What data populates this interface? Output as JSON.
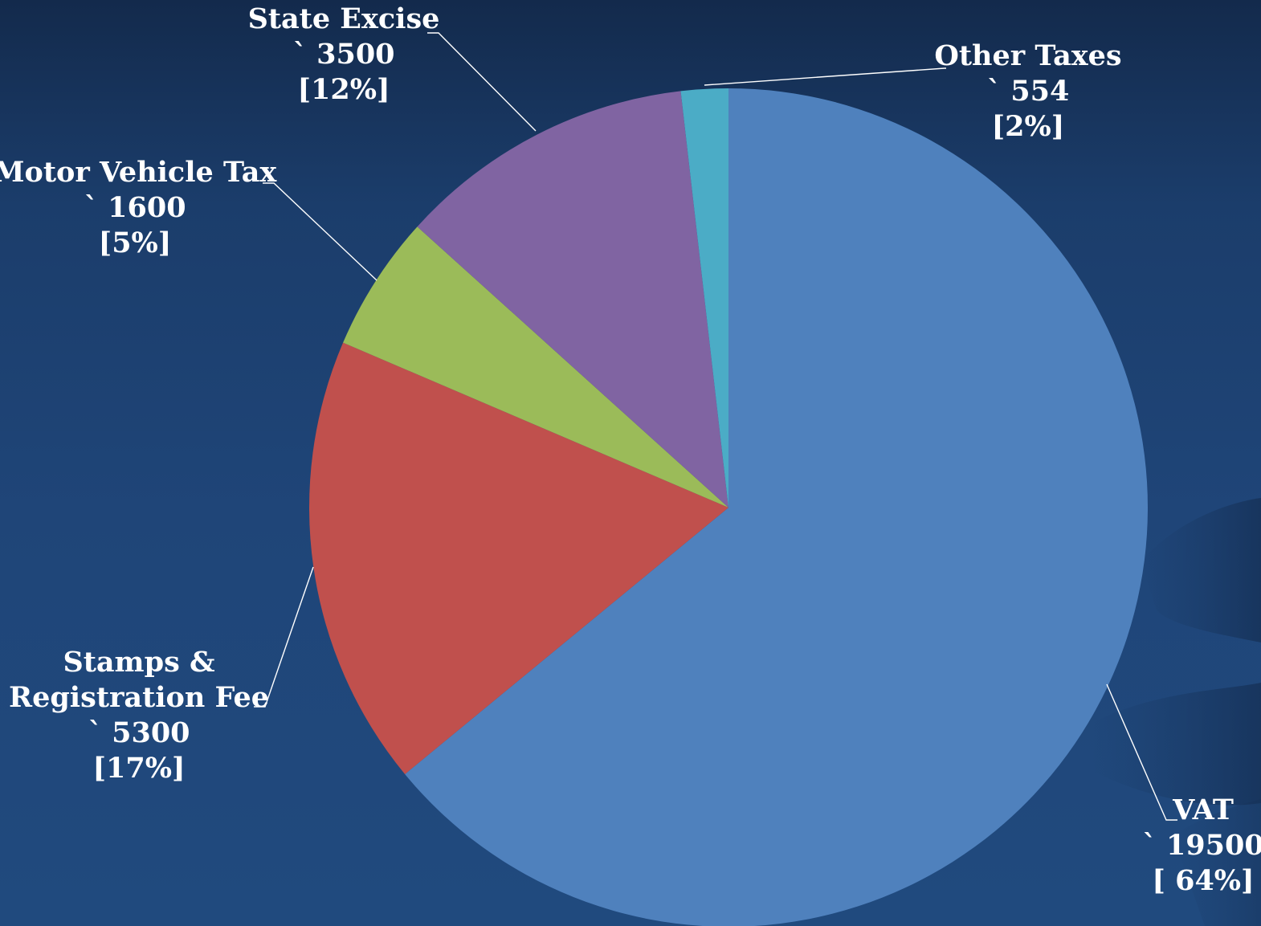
{
  "chart_data": {
    "type": "pie",
    "start_angle_deg": 0,
    "direction": "clockwise",
    "slices": [
      {
        "label": "VAT",
        "value": 19500,
        "value_text": "` 19500",
        "percent_text": "[ 64%]",
        "color": "#4f81bd"
      },
      {
        "label": "Stamps & Registration Fee",
        "value": 5300,
        "value_text": "` 5300",
        "percent_text": "[17%]",
        "color": "#c0504d"
      },
      {
        "label": "Motor Vehicle Tax",
        "value": 1600,
        "value_text": "` 1600",
        "percent_text": "[5%]",
        "color": "#9bbb59"
      },
      {
        "label": "State Excise",
        "value": 3500,
        "value_text": "` 3500",
        "percent_text": "[12%]",
        "color": "#8064a2"
      },
      {
        "label": "Other Taxes",
        "value": 554,
        "value_text": "` 554",
        "percent_text": "[2%]",
        "color": "#4bacc6"
      }
    ],
    "label_lines": [
      [
        "VAT"
      ],
      [
        "Stamps &",
        "Registration Fee"
      ],
      [
        "Motor Vehicle Tax"
      ],
      [
        "State Excise"
      ],
      [
        "Other Taxes"
      ]
    ],
    "leader_line_color": "#ffffff",
    "label_color": "#ffffff"
  }
}
